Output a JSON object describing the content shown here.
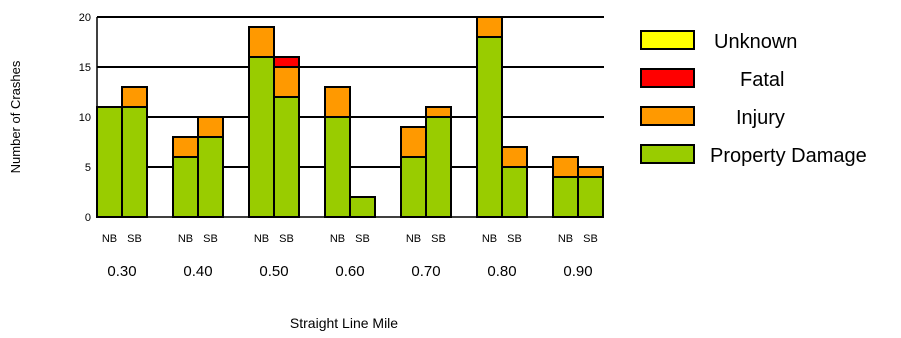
{
  "chart_data": {
    "type": "bar",
    "stacked": true,
    "xlabel": "Straight Line Mile",
    "ylabel": "Number of Crashes",
    "ylim": [
      0,
      20
    ],
    "yticks": [
      0,
      5,
      10,
      15,
      20
    ],
    "grid": "horizontal",
    "legend_position": "right",
    "groups": [
      "0.30",
      "0.40",
      "0.50",
      "0.60",
      "0.70",
      "0.80",
      "0.90"
    ],
    "subcategories": [
      "NB",
      "SB"
    ],
    "series": [
      {
        "name": "Property Damage",
        "color": "#99cc00",
        "values": [
          [
            11,
            11
          ],
          [
            6,
            8
          ],
          [
            16,
            12
          ],
          [
            10,
            2
          ],
          [
            6,
            10
          ],
          [
            18,
            5
          ],
          [
            4,
            4
          ]
        ]
      },
      {
        "name": "Injury",
        "color": "#ff9900",
        "values": [
          [
            0,
            2
          ],
          [
            2,
            2
          ],
          [
            3,
            3
          ],
          [
            3,
            0
          ],
          [
            3,
            1
          ],
          [
            2,
            2
          ],
          [
            2,
            1
          ]
        ]
      },
      {
        "name": "Fatal",
        "color": "#ff0000",
        "values": [
          [
            0,
            0
          ],
          [
            0,
            0
          ],
          [
            0,
            1
          ],
          [
            0,
            0
          ],
          [
            0,
            0
          ],
          [
            0,
            0
          ],
          [
            0,
            0
          ]
        ]
      },
      {
        "name": "Unknown",
        "color": "#ffff00",
        "values": [
          [
            0,
            0
          ],
          [
            0,
            0
          ],
          [
            0,
            0
          ],
          [
            0,
            0
          ],
          [
            0,
            0
          ],
          [
            0,
            0
          ],
          [
            0,
            0
          ]
        ]
      }
    ]
  },
  "legend": {
    "items": [
      {
        "label": "Unknown",
        "color": "#ffff00"
      },
      {
        "label": "Fatal",
        "color": "#ff0000"
      },
      {
        "label": "Injury",
        "color": "#ff9900"
      },
      {
        "label": "Property Damage",
        "color": "#99cc00"
      }
    ]
  }
}
